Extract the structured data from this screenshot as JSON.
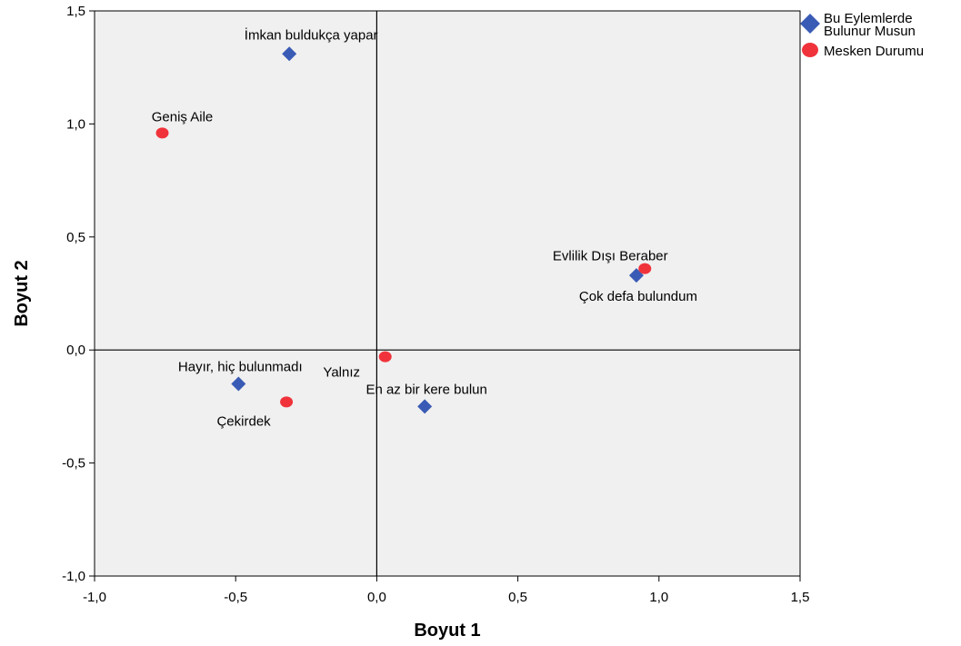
{
  "chart_data": {
    "type": "scatter",
    "xlabel": "Boyut 1",
    "ylabel": "Boyut 2",
    "xlim": [
      -1.0,
      1.5
    ],
    "ylim": [
      -1.0,
      1.5
    ],
    "x_ticks": [
      -1.0,
      -0.5,
      0.0,
      0.5,
      1.0,
      1.5
    ],
    "y_ticks": [
      -1.0,
      -0.5,
      0.0,
      0.5,
      1.0,
      1.5
    ],
    "x_tick_labels": [
      "-1,0",
      "-0,5",
      "0,0",
      "0,5",
      "1,0",
      "1,5"
    ],
    "y_tick_labels": [
      "-1,0",
      "-0,5",
      "0,0",
      "0,5",
      "1,0",
      "1,5"
    ],
    "grid": false,
    "reference_lines": {
      "x": 0,
      "y": 0
    },
    "legend_position": "top-right-outside",
    "series": [
      {
        "name": "Bu Eylemlerde Bulunur Musun",
        "name_lines": [
          "Bu Eylemlerde",
          "Bulunur Musun"
        ],
        "marker": "diamond",
        "color": "#3a5bb5",
        "points": [
          {
            "label": "İmkan buldukça yapar",
            "x": -0.31,
            "y": 1.31
          },
          {
            "label": "Çok defa bulundum",
            "x": 0.92,
            "y": 0.33
          },
          {
            "label": "Hayır, hiç bulunmadı",
            "x": -0.49,
            "y": -0.15
          },
          {
            "label": "En az bir kere bulun",
            "x": 0.17,
            "y": -0.25
          }
        ]
      },
      {
        "name": "Mesken Durumu",
        "name_lines": [
          "Mesken Durumu"
        ],
        "marker": "circle",
        "color": "#f0333b",
        "points": [
          {
            "label": "Geniş Aile",
            "x": -0.76,
            "y": 0.96
          },
          {
            "label": "Evlilik Dışı Beraber",
            "x": 0.95,
            "y": 0.36
          },
          {
            "label": "Yalnız",
            "x": 0.03,
            "y": -0.03
          },
          {
            "label": "Çekirdek",
            "x": -0.32,
            "y": -0.23
          }
        ]
      }
    ]
  }
}
